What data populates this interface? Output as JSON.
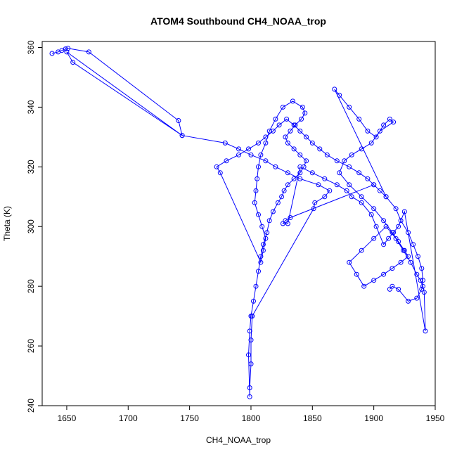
{
  "chart_data": {
    "type": "scatter",
    "title": "ATOM4 Southbound CH4_NOAA_trop",
    "xlabel": "CH4_NOAA_trop",
    "ylabel": "Theta (K)",
    "xlim": [
      1630,
      1950
    ],
    "ylim": [
      240,
      362
    ],
    "x_ticks": [
      1650,
      1700,
      1750,
      1800,
      1850,
      1900,
      1950
    ],
    "y_ticks": [
      240,
      260,
      280,
      300,
      320,
      340,
      360
    ],
    "grid": false,
    "legend": "none",
    "series": [
      {
        "style": "line+points",
        "color": "#0000ff",
        "x": [
          1638,
          1643,
          1646,
          1649,
          1651,
          1668,
          1741,
          1744,
          1655,
          1650,
          1744,
          1779,
          1790,
          1800,
          1812,
          1820,
          1830,
          1840,
          1855,
          1864,
          1860,
          1852,
          1851,
          1801,
          1800,
          1800,
          1799,
          1799,
          1798,
          1799,
          1800,
          1802,
          1804,
          1806,
          1808,
          1810,
          1813,
          1815,
          1818,
          1822,
          1825,
          1827,
          1830,
          1835,
          1840,
          1843,
          1845,
          1840,
          1835,
          1830,
          1828,
          1832,
          1836,
          1841,
          1844,
          1842,
          1834,
          1826,
          1820,
          1815,
          1812,
          1808,
          1806,
          1805,
          1804,
          1803,
          1806,
          1809,
          1812,
          1810,
          1808,
          1775,
          1772,
          1780,
          1790,
          1798,
          1806,
          1812,
          1818,
          1823,
          1829,
          1835,
          1840,
          1845,
          1850,
          1856,
          1862,
          1870,
          1880,
          1888,
          1895,
          1900,
          1905,
          1910,
          1868,
          1872,
          1880,
          1888,
          1895,
          1902,
          1908,
          1913,
          1916,
          1905,
          1898,
          1890,
          1882,
          1876,
          1872,
          1880,
          1890,
          1900,
          1908,
          1915,
          1920,
          1925,
          1928,
          1922,
          1915,
          1908,
          1900,
          1892,
          1886,
          1880,
          1890,
          1900,
          1910,
          1918,
          1924,
          1930,
          1935,
          1938,
          1940,
          1941,
          1942,
          1925,
          1920,
          1916,
          1912,
          1908,
          1902,
          1898,
          1890,
          1882,
          1878,
          1870,
          1860,
          1850,
          1840,
          1830,
          1826,
          1828,
          1832,
          1900,
          1910,
          1918,
          1922,
          1928,
          1932,
          1936,
          1939,
          1940,
          1939,
          1935,
          1928,
          1920,
          1915,
          1913
        ],
        "y": [
          358,
          358.5,
          359,
          359.5,
          359.7,
          358.5,
          335.5,
          330.5,
          355,
          358.5,
          330.5,
          328,
          326,
          324,
          322,
          320,
          318,
          316,
          314,
          312,
          310,
          308,
          306,
          270,
          262,
          254,
          246,
          243,
          257,
          265,
          270,
          275,
          280,
          285,
          290,
          294,
          298,
          302,
          305,
          308,
          310,
          312,
          314,
          316,
          318,
          320,
          322,
          324,
          326,
          328,
          330,
          332,
          334,
          336,
          338,
          340,
          342,
          340,
          336,
          332,
          328,
          324,
          320,
          316,
          312,
          308,
          304,
          300,
          296,
          292,
          288,
          318,
          320,
          322,
          324,
          326,
          328,
          330,
          332,
          334,
          336,
          334,
          332,
          330,
          328,
          326,
          324,
          322,
          320,
          318,
          316,
          314,
          312,
          310,
          346,
          344,
          340,
          336,
          332,
          330,
          334,
          336,
          335,
          332,
          328,
          326,
          324,
          322,
          318,
          314,
          310,
          306,
          302,
          298,
          295,
          292,
          290,
          288,
          286,
          284,
          282,
          280,
          284,
          288,
          292,
          296,
          300,
          296,
          292,
          288,
          284,
          282,
          280,
          278,
          265,
          305,
          300,
          298,
          296,
          294,
          300,
          304,
          308,
          310,
          312,
          314,
          316,
          318,
          320,
          301,
          301,
          302,
          303,
          314,
          310,
          306,
          302,
          298,
          294,
          290,
          286,
          282,
          279,
          276,
          275,
          279,
          280,
          279
        ]
      }
    ]
  }
}
